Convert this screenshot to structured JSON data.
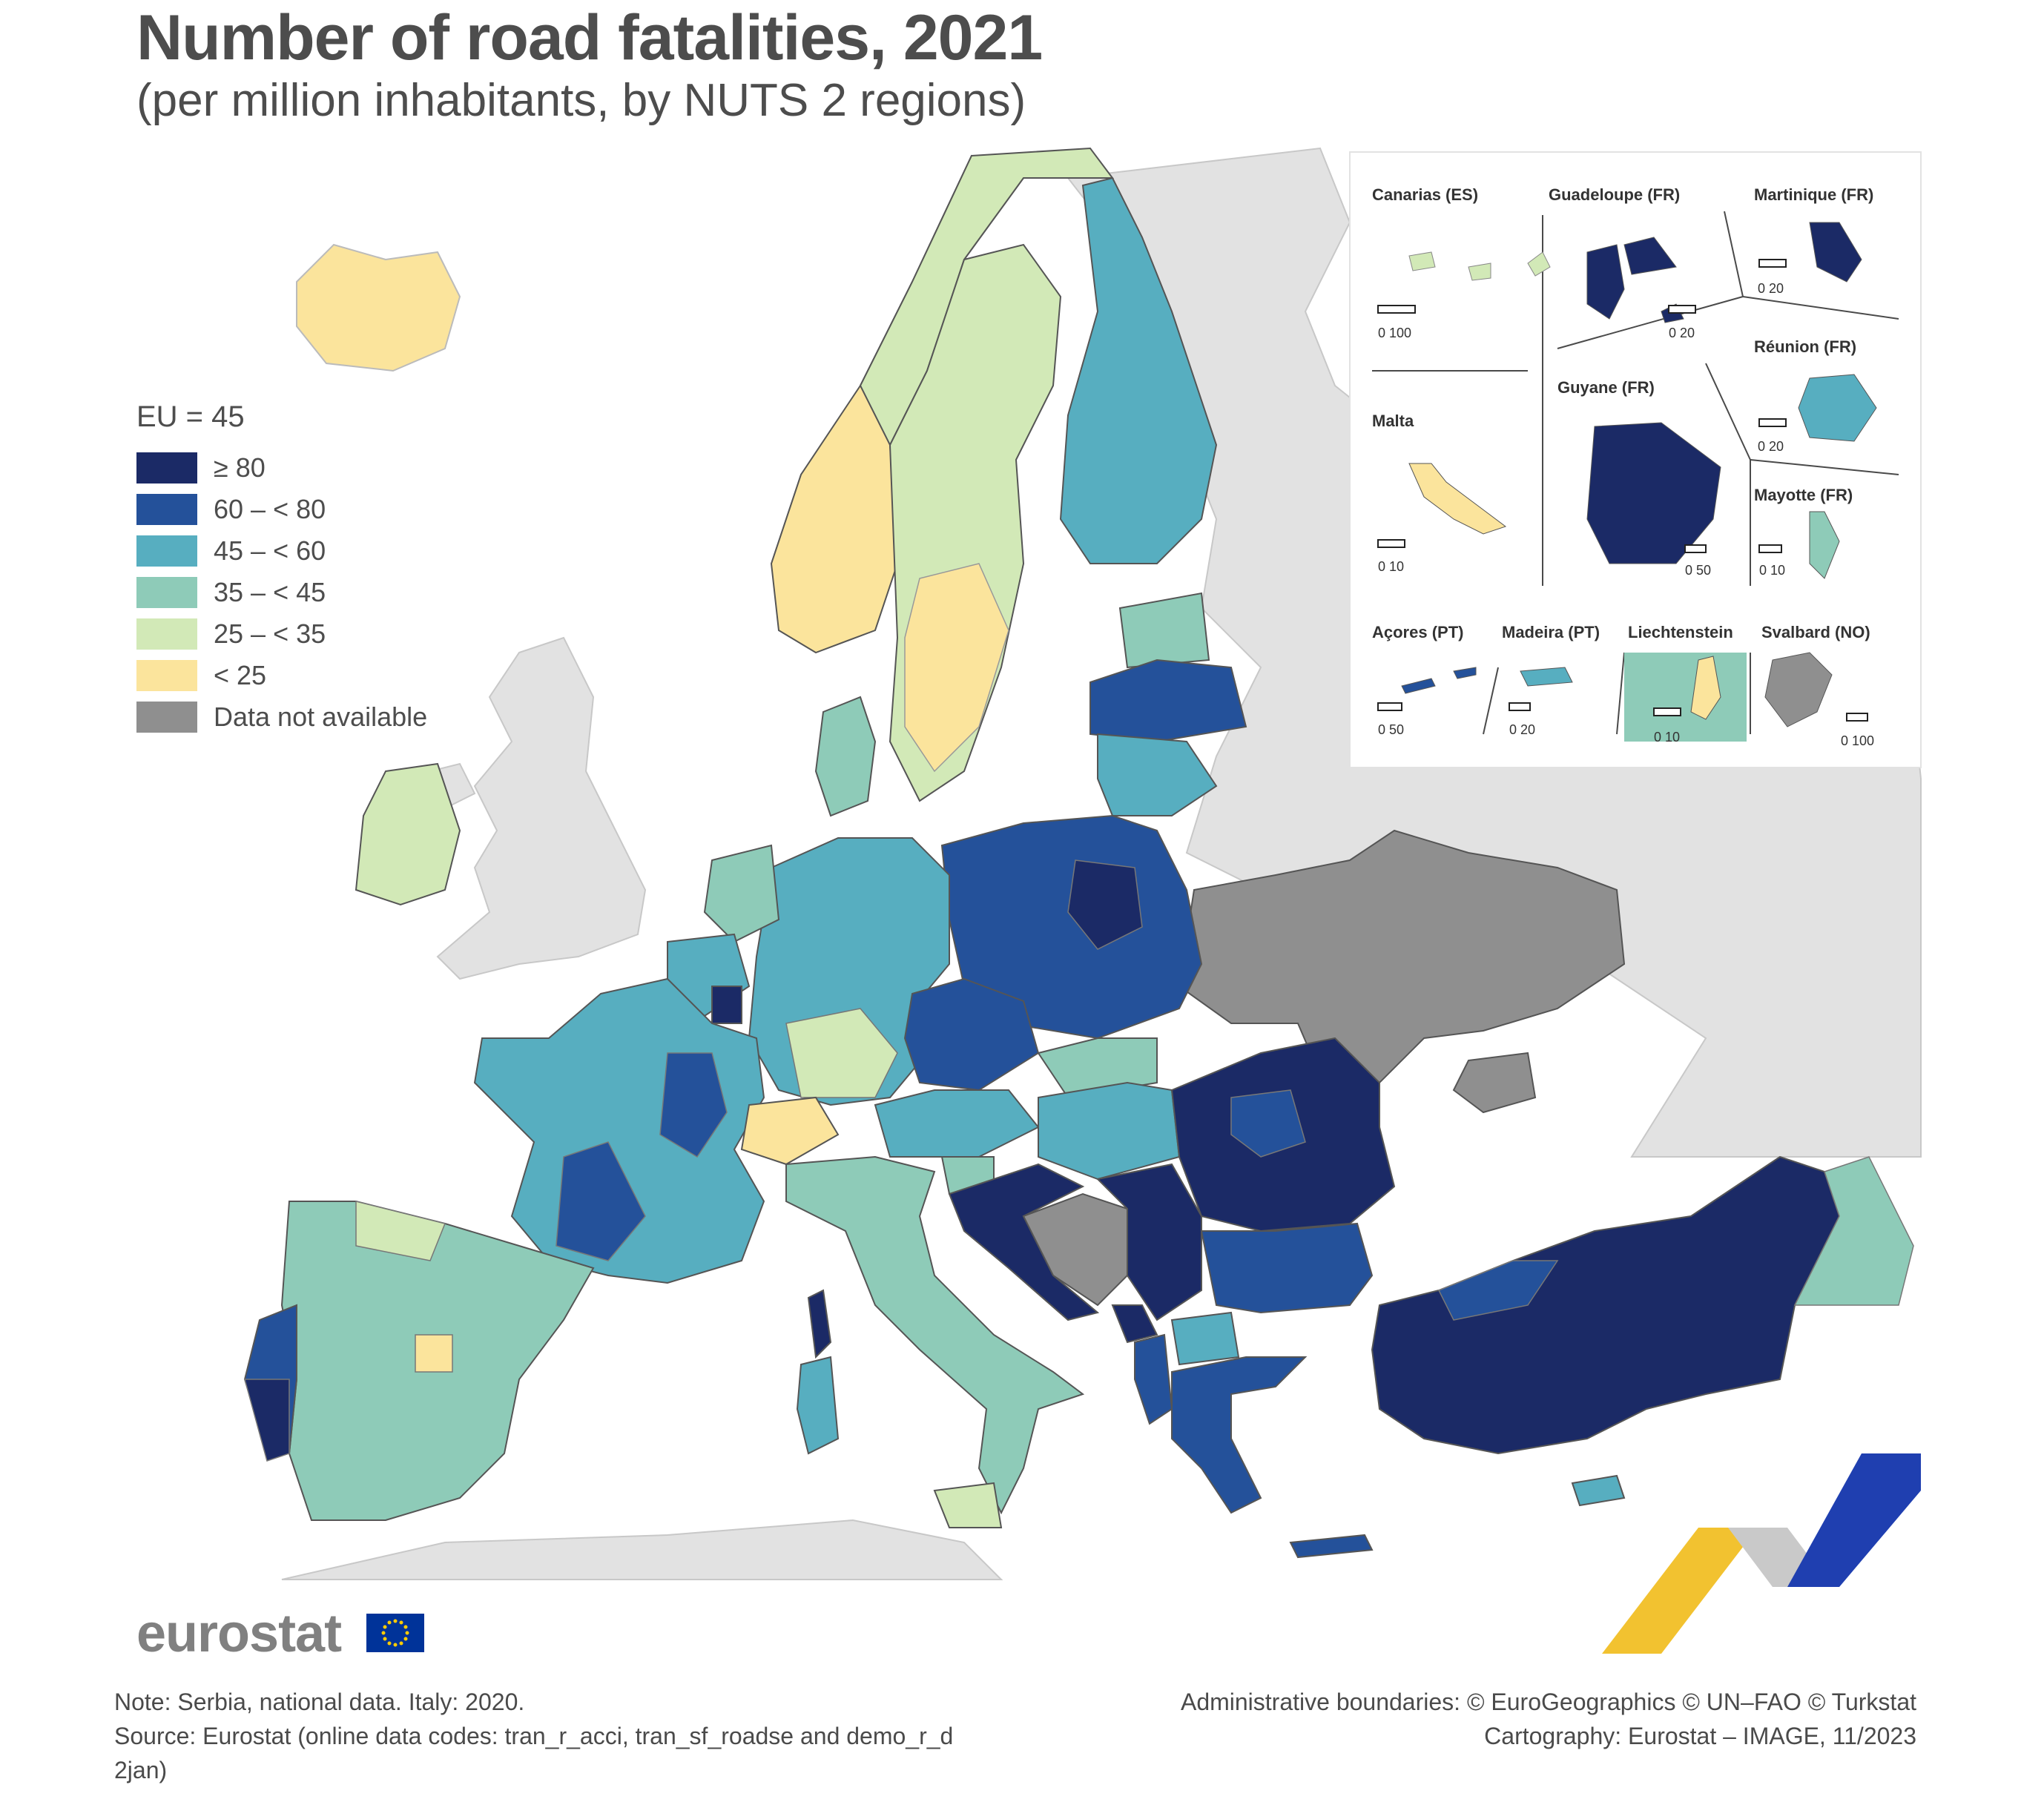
{
  "title": "Number of road fatalities, 2021",
  "subtitle": "(per million inhabitants, by NUTS 2 regions)",
  "legend": {
    "heading": "EU = 45",
    "items": [
      {
        "label": "≥ 80",
        "color": "#1b2a66"
      },
      {
        "label": "60 – < 80",
        "color": "#24519a"
      },
      {
        "label": "45 – < 60",
        "color": "#57aec0"
      },
      {
        "label": "35 – < 45",
        "color": "#8ecbb8"
      },
      {
        "label": "25 – < 35",
        "color": "#d2e9b7"
      },
      {
        "label": "< 25",
        "color": "#fbe49c"
      },
      {
        "label": "Data not available",
        "color": "#8f8f8f"
      }
    ]
  },
  "insets": [
    {
      "name": "Canarias (ES)",
      "scale": "0   100"
    },
    {
      "name": "Guadeloupe (FR)",
      "scale": "0   20"
    },
    {
      "name": "Martinique (FR)",
      "scale": "0   20"
    },
    {
      "name": "Réunion (FR)",
      "scale": "0   20"
    },
    {
      "name": "Malta",
      "scale": "0   10"
    },
    {
      "name": "Guyane (FR)",
      "scale": "0 50"
    },
    {
      "name": "Mayotte (FR)",
      "scale": "0   10"
    },
    {
      "name": "Açores (PT)",
      "scale": "0   50"
    },
    {
      "name": "Madeira (PT)",
      "scale": "0   20"
    },
    {
      "name": "Liechtenstein",
      "scale": "0   10"
    },
    {
      "name": "Svalbard (NO)",
      "scale": "0 100"
    }
  ],
  "logo": {
    "text": "eurostat"
  },
  "note": {
    "line1": "Note: Serbia, national data. Italy: 2020.",
    "line2": "Source: Eurostat (online data codes: tran_r_acci, tran_sf_roadse and demo_r_d",
    "line3": "2jan)"
  },
  "credits": {
    "line1": "Administrative boundaries: © EuroGeographics © UN–FAO © Turkstat",
    "line2": "Cartography: Eurostat – IMAGE, 11/2023"
  },
  "colors": {
    "c80": "#1b2a66",
    "c60": "#24519a",
    "c45": "#57aec0",
    "c35": "#8ecbb8",
    "c25": "#d2e9b7",
    "clt25": "#fbe49c",
    "na": "#8f8f8f",
    "nonEU": "#e2e2e2",
    "accent_yellow": "#f2c230",
    "accent_blue": "#1f3fb0"
  }
}
